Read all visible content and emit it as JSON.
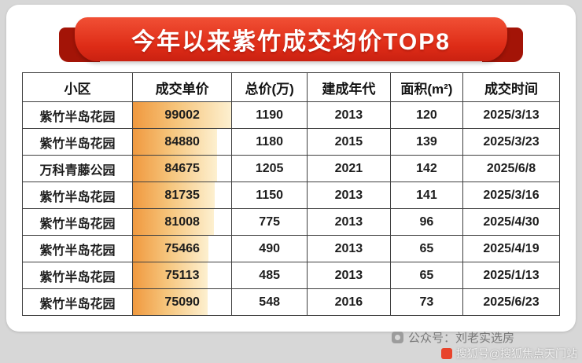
{
  "banner": {
    "title": "今年以来紫竹成交均价TOP8"
  },
  "chart_data": {
    "type": "table",
    "title": "今年以来紫竹成交均价TOP8",
    "columns": [
      "小区",
      "成交单价",
      "总价(万)",
      "建成年代",
      "面积(m²)",
      "成交时间"
    ],
    "rows": [
      [
        "紫竹半岛花园",
        "99002",
        "1190",
        "2013",
        "120",
        "2025/3/13"
      ],
      [
        "紫竹半岛花园",
        "84880",
        "1180",
        "2015",
        "139",
        "2025/3/23"
      ],
      [
        "万科青藤公园",
        "84675",
        "1205",
        "2021",
        "142",
        "2025/6/8"
      ],
      [
        "紫竹半岛花园",
        "81735",
        "1150",
        "2013",
        "141",
        "2025/3/16"
      ],
      [
        "紫竹半岛花园",
        "81008",
        "775",
        "2013",
        "96",
        "2025/4/30"
      ],
      [
        "紫竹半岛花园",
        "75466",
        "490",
        "2013",
        "65",
        "2025/4/19"
      ],
      [
        "紫竹半岛花园",
        "75113",
        "485",
        "2013",
        "65",
        "2025/1/13"
      ],
      [
        "紫竹半岛花园",
        "75090",
        "548",
        "2016",
        "73",
        "2025/6/23"
      ]
    ],
    "bar_column_index": 1,
    "bar_max": 99002,
    "layout": {
      "grid": true,
      "bar_fill_direction": "left-to-right"
    }
  },
  "footer": {
    "account": "公众号：刘老实选房",
    "watermark": "搜狐号@搜狐焦点天门站"
  },
  "colors": {
    "banner_red": "#de2c17",
    "banner_fold_red": "#a31407",
    "bar_start": "#f0993f",
    "bar_end": "#fdf0d0",
    "table_border": "#3f3f3f",
    "page_background": "#d7d7d7",
    "card_background": "#ffffff"
  }
}
